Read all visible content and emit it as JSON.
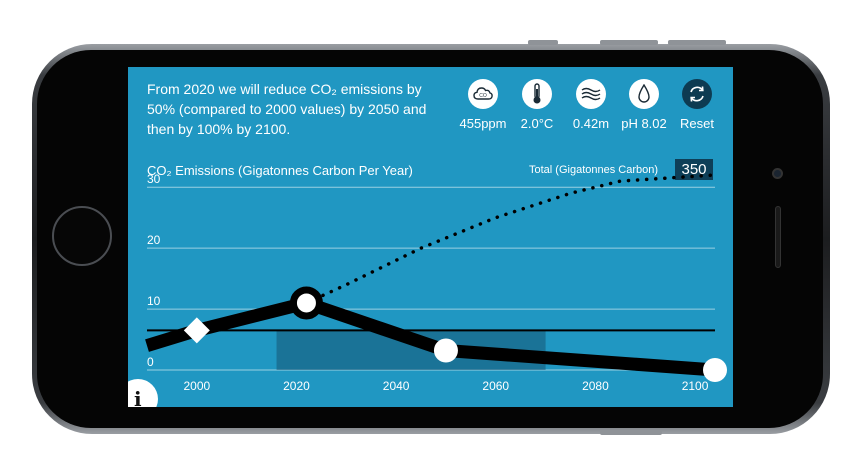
{
  "description": "From 2020 we will reduce CO₂ emissions by 50% (compared to 2000 values) by 2050 and then by 100% by 2100.",
  "stats": [
    {
      "icon": "cloud-co2-icon",
      "label": "455ppm"
    },
    {
      "icon": "thermometer-icon",
      "label": "2.0°C"
    },
    {
      "icon": "waves-icon",
      "label": "0.42m"
    },
    {
      "icon": "droplet-icon",
      "label": "pH 8.02"
    },
    {
      "icon": "refresh-icon",
      "label": "Reset"
    }
  ],
  "chart": {
    "title": "CO₂ Emissions (Gigatonnes Carbon Per Year)",
    "total_label": "Total (Gigatonnes Carbon)",
    "total_value": "350"
  },
  "colors": {
    "screen": "#2097c2",
    "dark": "#0e3f58",
    "line": "#000000"
  },
  "chart_data": {
    "type": "line",
    "x_ticks": [
      2000,
      2020,
      2040,
      2060,
      2080,
      2100
    ],
    "y_ticks": [
      0,
      10,
      20,
      30
    ],
    "xlim": [
      1990,
      2104
    ],
    "ylim": [
      0,
      32
    ],
    "series": [
      {
        "name": "emissions",
        "x": [
          1990,
          2000,
          2022,
          2050,
          2104
        ],
        "y": [
          4,
          6.5,
          11,
          3.2,
          0
        ],
        "style": "solid"
      },
      {
        "name": "cumulative",
        "x": [
          2022,
          2030,
          2045,
          2060,
          2075,
          2085,
          2104
        ],
        "y": [
          11,
          14,
          20,
          25,
          29,
          31,
          32
        ],
        "style": "dotted"
      }
    ],
    "reference_line": 6.5,
    "shaded_region": [
      2016,
      2070
    ],
    "handles": [
      {
        "x": 2000,
        "y": 6.5,
        "shape": "diamond"
      },
      {
        "x": 2022,
        "y": 11,
        "shape": "ring"
      },
      {
        "x": 2050,
        "y": 3.2,
        "shape": "circle"
      },
      {
        "x": 2104,
        "y": 0,
        "shape": "circle"
      }
    ]
  }
}
